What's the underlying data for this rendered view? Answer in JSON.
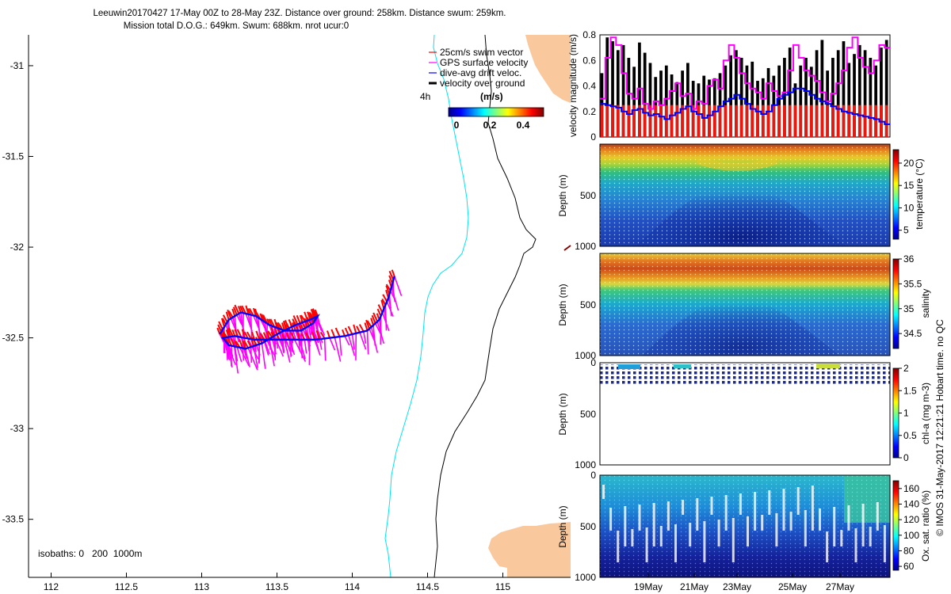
{
  "header": {
    "title_line1": "Leeuwin20170427 17-May 00Z to 28-May 23Z. Distance over ground: 258km. Distance swum: 259km.",
    "title_line2": "Mission total D.O.G.: 649km. Swum: 688km. nrot ucur:0"
  },
  "colors": {
    "land": "#f9c99d",
    "isobath_200": "#00e5ee",
    "isobath_1000": "#000000",
    "swim_vector": "#ff0000",
    "gps_velocity": "#ff00ff",
    "drift_velocity": "#0000ff",
    "vog": "#000000"
  },
  "map": {
    "xticks": [
      "112",
      "112.5",
      "113",
      "113.5",
      "114",
      "114.5",
      "115"
    ],
    "yticks": [
      "-31",
      "-31.5",
      "-32",
      "-32.5",
      "-33",
      "-33.5"
    ],
    "xlim": [
      111.85,
      115.45
    ],
    "ylim": [
      -33.82,
      -30.83
    ],
    "legend": {
      "items": [
        "25cm/s swim vector",
        "GPS surface velocity",
        "dive-avg drift veloc.",
        "velocity over ground"
      ],
      "interval_label": "4h",
      "colorbar_title": "(m/s)",
      "colorbar_ticks": [
        "0",
        "0.2",
        "0.4"
      ]
    },
    "isobath_label": "isobaths: 0   200  1000m",
    "glider_track": [
      [
        113.12,
        -32.48
      ],
      [
        113.18,
        -32.4
      ],
      [
        113.26,
        -32.36
      ],
      [
        113.36,
        -32.38
      ],
      [
        113.45,
        -32.43
      ],
      [
        113.55,
        -32.46
      ],
      [
        113.66,
        -32.46
      ],
      [
        113.74,
        -32.42
      ],
      [
        113.77,
        -32.38
      ],
      [
        113.72,
        -32.4
      ],
      [
        113.62,
        -32.43
      ],
      [
        113.5,
        -32.48
      ],
      [
        113.4,
        -32.53
      ],
      [
        113.29,
        -32.56
      ],
      [
        113.18,
        -32.54
      ],
      [
        113.14,
        -32.5
      ],
      [
        113.22,
        -32.49
      ],
      [
        113.35,
        -32.51
      ],
      [
        113.55,
        -32.51
      ],
      [
        113.75,
        -32.51
      ],
      [
        113.95,
        -32.49
      ],
      [
        114.1,
        -32.46
      ],
      [
        114.18,
        -32.4
      ],
      [
        114.24,
        -32.28
      ],
      [
        114.28,
        -32.16
      ]
    ]
  },
  "panels": {
    "velocity": {
      "ylabel": "velocity magnitude (m/s)",
      "yticks": [
        "0",
        "0.2",
        "0.4",
        "0.6",
        "0.8"
      ],
      "ylim": [
        0,
        0.8
      ],
      "vog": [
        0.5,
        0.78,
        0.75,
        0.68,
        0.72,
        0.62,
        0.55,
        0.74,
        0.66,
        0.58,
        0.47,
        0.52,
        0.56,
        0.49,
        0.43,
        0.52,
        0.58,
        0.44,
        0.42,
        0.48,
        0.45,
        0.46,
        0.5,
        0.56,
        0.64,
        0.68,
        0.62,
        0.56,
        0.59,
        0.44,
        0.46,
        0.54,
        0.48,
        0.56,
        0.62,
        0.7,
        0.42,
        0.56,
        0.62,
        0.55,
        0.68,
        0.76,
        0.52,
        0.62,
        0.68,
        0.75,
        0.58,
        0.65,
        0.72,
        0.68,
        0.62,
        0.56,
        0.7,
        0.76
      ],
      "gps": [
        0.3,
        0.62,
        0.78,
        0.72,
        0.5,
        0.34,
        0.3,
        0.38,
        0.26,
        0.22,
        0.28,
        0.25,
        0.3,
        0.36,
        0.42,
        0.32,
        0.34,
        0.22,
        0.28,
        0.26,
        0.4,
        0.45,
        0.38,
        0.6,
        0.72,
        0.62,
        0.5,
        0.42,
        0.38,
        0.35,
        0.3,
        0.42,
        0.36,
        0.32,
        0.35,
        0.52,
        0.72,
        0.62,
        0.52,
        0.48,
        0.44,
        0.35,
        0.28,
        0.34,
        0.42,
        0.52,
        0.7,
        0.78,
        0.62,
        0.55,
        0.5,
        0.6,
        0.72,
        0.7
      ],
      "drift": [
        0.26,
        0.25,
        0.24,
        0.23,
        0.2,
        0.18,
        0.21,
        0.22,
        0.19,
        0.17,
        0.18,
        0.16,
        0.14,
        0.17,
        0.19,
        0.22,
        0.24,
        0.2,
        0.18,
        0.15,
        0.17,
        0.2,
        0.24,
        0.28,
        0.3,
        0.33,
        0.3,
        0.26,
        0.22,
        0.2,
        0.18,
        0.2,
        0.25,
        0.3,
        0.33,
        0.35,
        0.38,
        0.38,
        0.36,
        0.33,
        0.3,
        0.28,
        0.26,
        0.24,
        0.22,
        0.2,
        0.19,
        0.18,
        0.17,
        0.16,
        0.15,
        0.14,
        0.12,
        0.1
      ],
      "swim": 0.25
    },
    "temperature": {
      "ylabel": "Depth (m)",
      "clabel": "temperature (°C)",
      "yticks": [
        "500",
        "1000"
      ],
      "cticks": [
        "5",
        "10",
        "15",
        "20"
      ],
      "clim": [
        3,
        23
      ]
    },
    "salinity": {
      "ylabel": "Depth (m)",
      "clabel": "salinity",
      "yticks": [
        "500",
        "1000"
      ],
      "cticks": [
        "34.5",
        "35",
        "35.5",
        "36"
      ],
      "clim": [
        34.2,
        36
      ]
    },
    "chla": {
      "ylabel": "Depth (m)",
      "clabel": "chl-a (mg m-3)",
      "yticks": [
        "0",
        "500",
        "1000"
      ],
      "cticks": [
        "0",
        "0.5",
        "1",
        "1.5",
        "2"
      ],
      "clim": [
        0,
        2
      ]
    },
    "oxygen": {
      "ylabel": "Depth (m)",
      "clabel": "Ox. sat. ratio (%)",
      "yticks": [
        "0",
        "500",
        "1000"
      ],
      "cticks": [
        "60",
        "80",
        "100",
        "120",
        "140",
        "160"
      ],
      "clim": [
        55,
        170
      ]
    },
    "xticks": [
      "19May",
      "21May",
      "23May",
      "25May",
      "27May"
    ]
  },
  "footer_note": "© IMOS 31-May-2017 12:21:21 Hobart time. no QC"
}
